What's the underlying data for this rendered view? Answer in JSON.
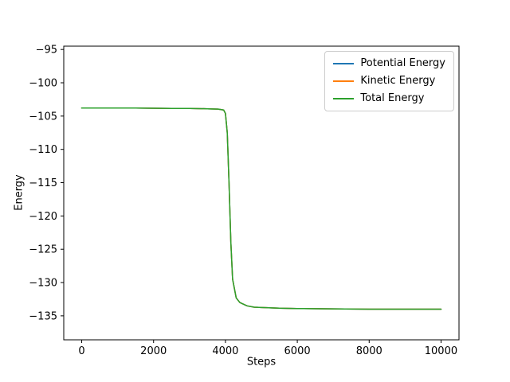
{
  "figure": {
    "background": "#ffffff"
  },
  "chart_data": {
    "type": "line",
    "title": "",
    "xlabel": "Steps",
    "ylabel": "Energy",
    "xlim": [
      -500,
      10500
    ],
    "ylim": [
      -138.6,
      -94.5
    ],
    "grid": false,
    "xticks": [
      0,
      2000,
      4000,
      6000,
      8000,
      10000
    ],
    "xtick_labels": [
      "0",
      "2000",
      "4000",
      "6000",
      "8000",
      "10000"
    ],
    "yticks": [
      -95,
      -100,
      -105,
      -110,
      -115,
      -120,
      -125,
      -130,
      -135
    ],
    "ytick_labels": [
      "−95",
      "−100",
      "−105",
      "−110",
      "−115",
      "−120",
      "−125",
      "−130",
      "−135"
    ],
    "legend": {
      "position": "upper right",
      "entries": [
        "Potential Energy",
        "Kinetic Energy",
        "Total Energy"
      ]
    },
    "x": [
      0,
      500,
      1000,
      1500,
      2000,
      2500,
      3000,
      3500,
      3800,
      3950,
      4000,
      4050,
      4100,
      4150,
      4200,
      4300,
      4400,
      4600,
      4800,
      5000,
      5500,
      6000,
      7000,
      8000,
      9000,
      10000
    ],
    "series": [
      {
        "name": "Potential Energy",
        "color": "#1f77b4",
        "values": [
          -103.8,
          -103.8,
          -103.8,
          -103.8,
          -103.82,
          -103.85,
          -103.85,
          -103.9,
          -103.95,
          -104.1,
          -104.6,
          -107.5,
          -115.0,
          -124.0,
          -129.5,
          -132.3,
          -133.0,
          -133.5,
          -133.7,
          -133.75,
          -133.85,
          -133.9,
          -133.95,
          -134.0,
          -134.0,
          -134.0
        ]
      },
      {
        "name": "Kinetic Energy",
        "color": "#ff7f0e",
        "values": [
          -103.8,
          -103.8,
          -103.8,
          -103.8,
          -103.82,
          -103.85,
          -103.85,
          -103.9,
          -103.95,
          -104.1,
          -104.6,
          -107.5,
          -115.0,
          -124.0,
          -129.5,
          -132.3,
          -133.0,
          -133.5,
          -133.7,
          -133.75,
          -133.85,
          -133.9,
          -133.95,
          -134.0,
          -134.0,
          -134.0
        ]
      },
      {
        "name": "Total Energy",
        "color": "#2ca02c",
        "values": [
          -103.8,
          -103.8,
          -103.8,
          -103.8,
          -103.82,
          -103.85,
          -103.85,
          -103.9,
          -103.95,
          -104.1,
          -104.6,
          -107.5,
          -115.0,
          -124.0,
          -129.5,
          -132.3,
          -133.0,
          -133.5,
          -133.7,
          -133.75,
          -133.85,
          -133.9,
          -133.95,
          -134.0,
          -134.0,
          -134.0
        ]
      }
    ],
    "note": "All three series overlap; the Total Energy (green) line, drawn last, is the visible curve."
  }
}
